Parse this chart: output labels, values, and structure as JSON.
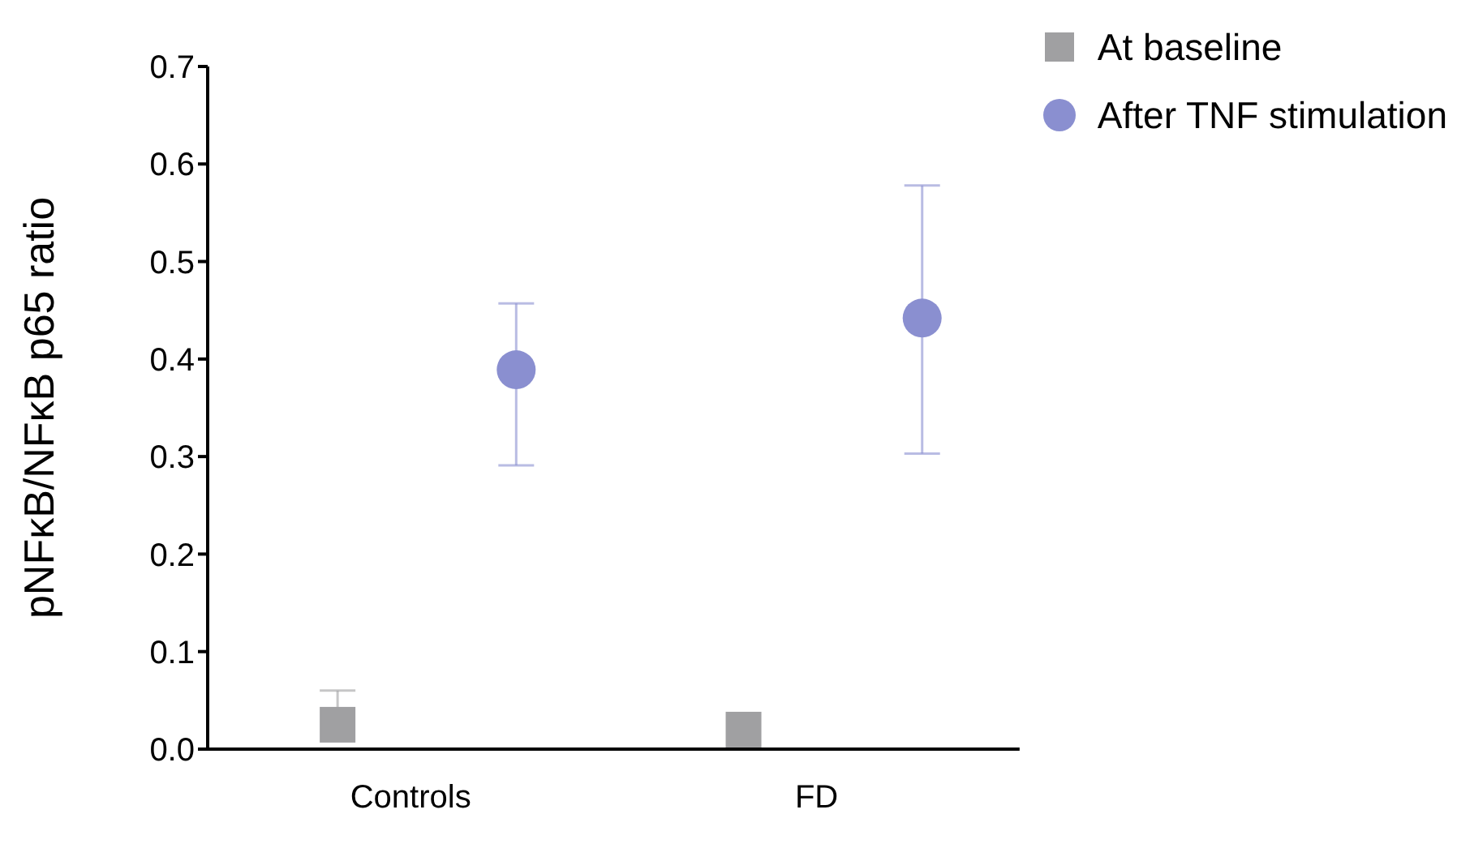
{
  "chart_data": {
    "type": "scatter",
    "ylabel": "pNFκB/NFκB p65 ratio",
    "categories": [
      "Controls",
      "FD"
    ],
    "series": [
      {
        "name": "At baseline",
        "color": "#a0a0a2",
        "marker": "square",
        "values": [
          0.025,
          0.02
        ],
        "errors": [
          [
            0.025,
            0.06
          ],
          null
        ]
      },
      {
        "name": "After TNF stimulation",
        "color": "#8a8fd0",
        "marker": "circle",
        "values": [
          0.389,
          0.442
        ],
        "errors": [
          [
            0.291,
            0.457
          ],
          [
            0.303,
            0.578
          ]
        ]
      }
    ],
    "ylim": [
      0,
      0.7
    ],
    "yticks": [
      {
        "value": 0,
        "label": "0.0"
      },
      0.1,
      0.2,
      0.3,
      0.4,
      0.5,
      0.6,
      0.7
    ],
    "grid": false,
    "legend": "top right"
  }
}
